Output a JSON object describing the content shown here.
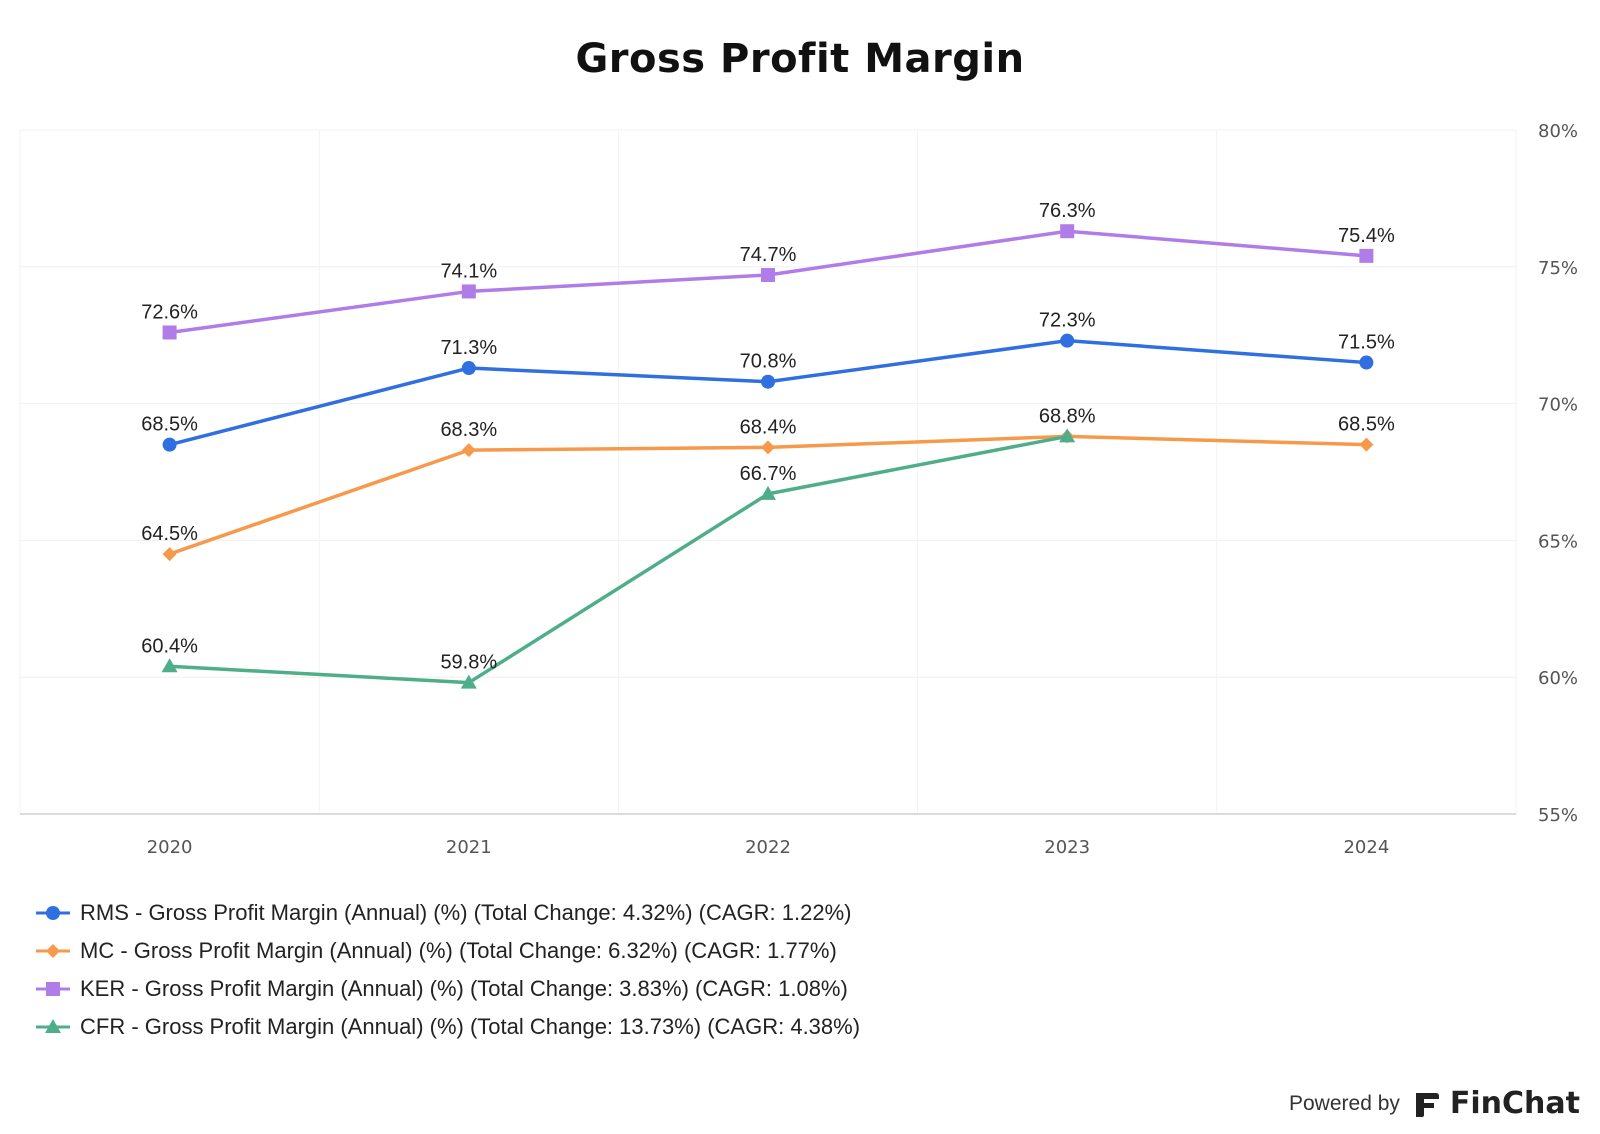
{
  "chart_data": {
    "type": "line",
    "title": "Gross Profit Margin",
    "x": [
      "2020",
      "2021",
      "2022",
      "2023",
      "2024"
    ],
    "ylim": [
      55,
      80
    ],
    "y_ticks": [
      "80%",
      "75%",
      "70%",
      "65%",
      "60%",
      "55%"
    ],
    "y_tick_values": [
      80,
      75,
      70,
      65,
      60,
      55
    ],
    "y_axis_position": "right",
    "grid": true,
    "legend_position": "bottom-left",
    "series": [
      {
        "name": "RMS - Gross Profit Margin (Annual) (%) (Total Change: 4.32%) (CAGR: 1.22%)",
        "values": [
          68.5,
          71.3,
          70.8,
          72.3,
          71.5
        ],
        "labels": [
          "68.5%",
          "71.3%",
          "70.8%",
          "72.3%",
          "71.5%"
        ],
        "color": "#2f6fe0",
        "marker": "circle"
      },
      {
        "name": "MC - Gross Profit Margin (Annual) (%) (Total Change: 6.32%) (CAGR: 1.77%)",
        "values": [
          64.5,
          68.3,
          68.4,
          68.8,
          68.5
        ],
        "labels": [
          "64.5%",
          "68.3%",
          "68.4%",
          "68.8%",
          "68.5%"
        ],
        "color": "#f7994a",
        "marker": "diamond"
      },
      {
        "name": "KER - Gross Profit Margin (Annual) (%) (Total Change: 3.83%) (CAGR: 1.08%)",
        "values": [
          72.6,
          74.1,
          74.7,
          76.3,
          75.4
        ],
        "labels": [
          "72.6%",
          "74.1%",
          "74.7%",
          "76.3%",
          "75.4%"
        ],
        "color": "#b07de8",
        "marker": "square"
      },
      {
        "name": "CFR - Gross Profit Margin (Annual) (%) (Total Change: 13.73%) (CAGR: 4.38%)",
        "values": [
          60.4,
          59.8,
          66.7,
          68.8,
          null
        ],
        "labels": [
          "60.4%",
          "59.8%",
          "66.7%",
          "",
          ""
        ],
        "color": "#4fae8a",
        "marker": "triangle"
      }
    ]
  },
  "footer": {
    "powered_by": "Powered by",
    "brand": "FinChat",
    "brand_icon": "finchat-logo-icon"
  }
}
